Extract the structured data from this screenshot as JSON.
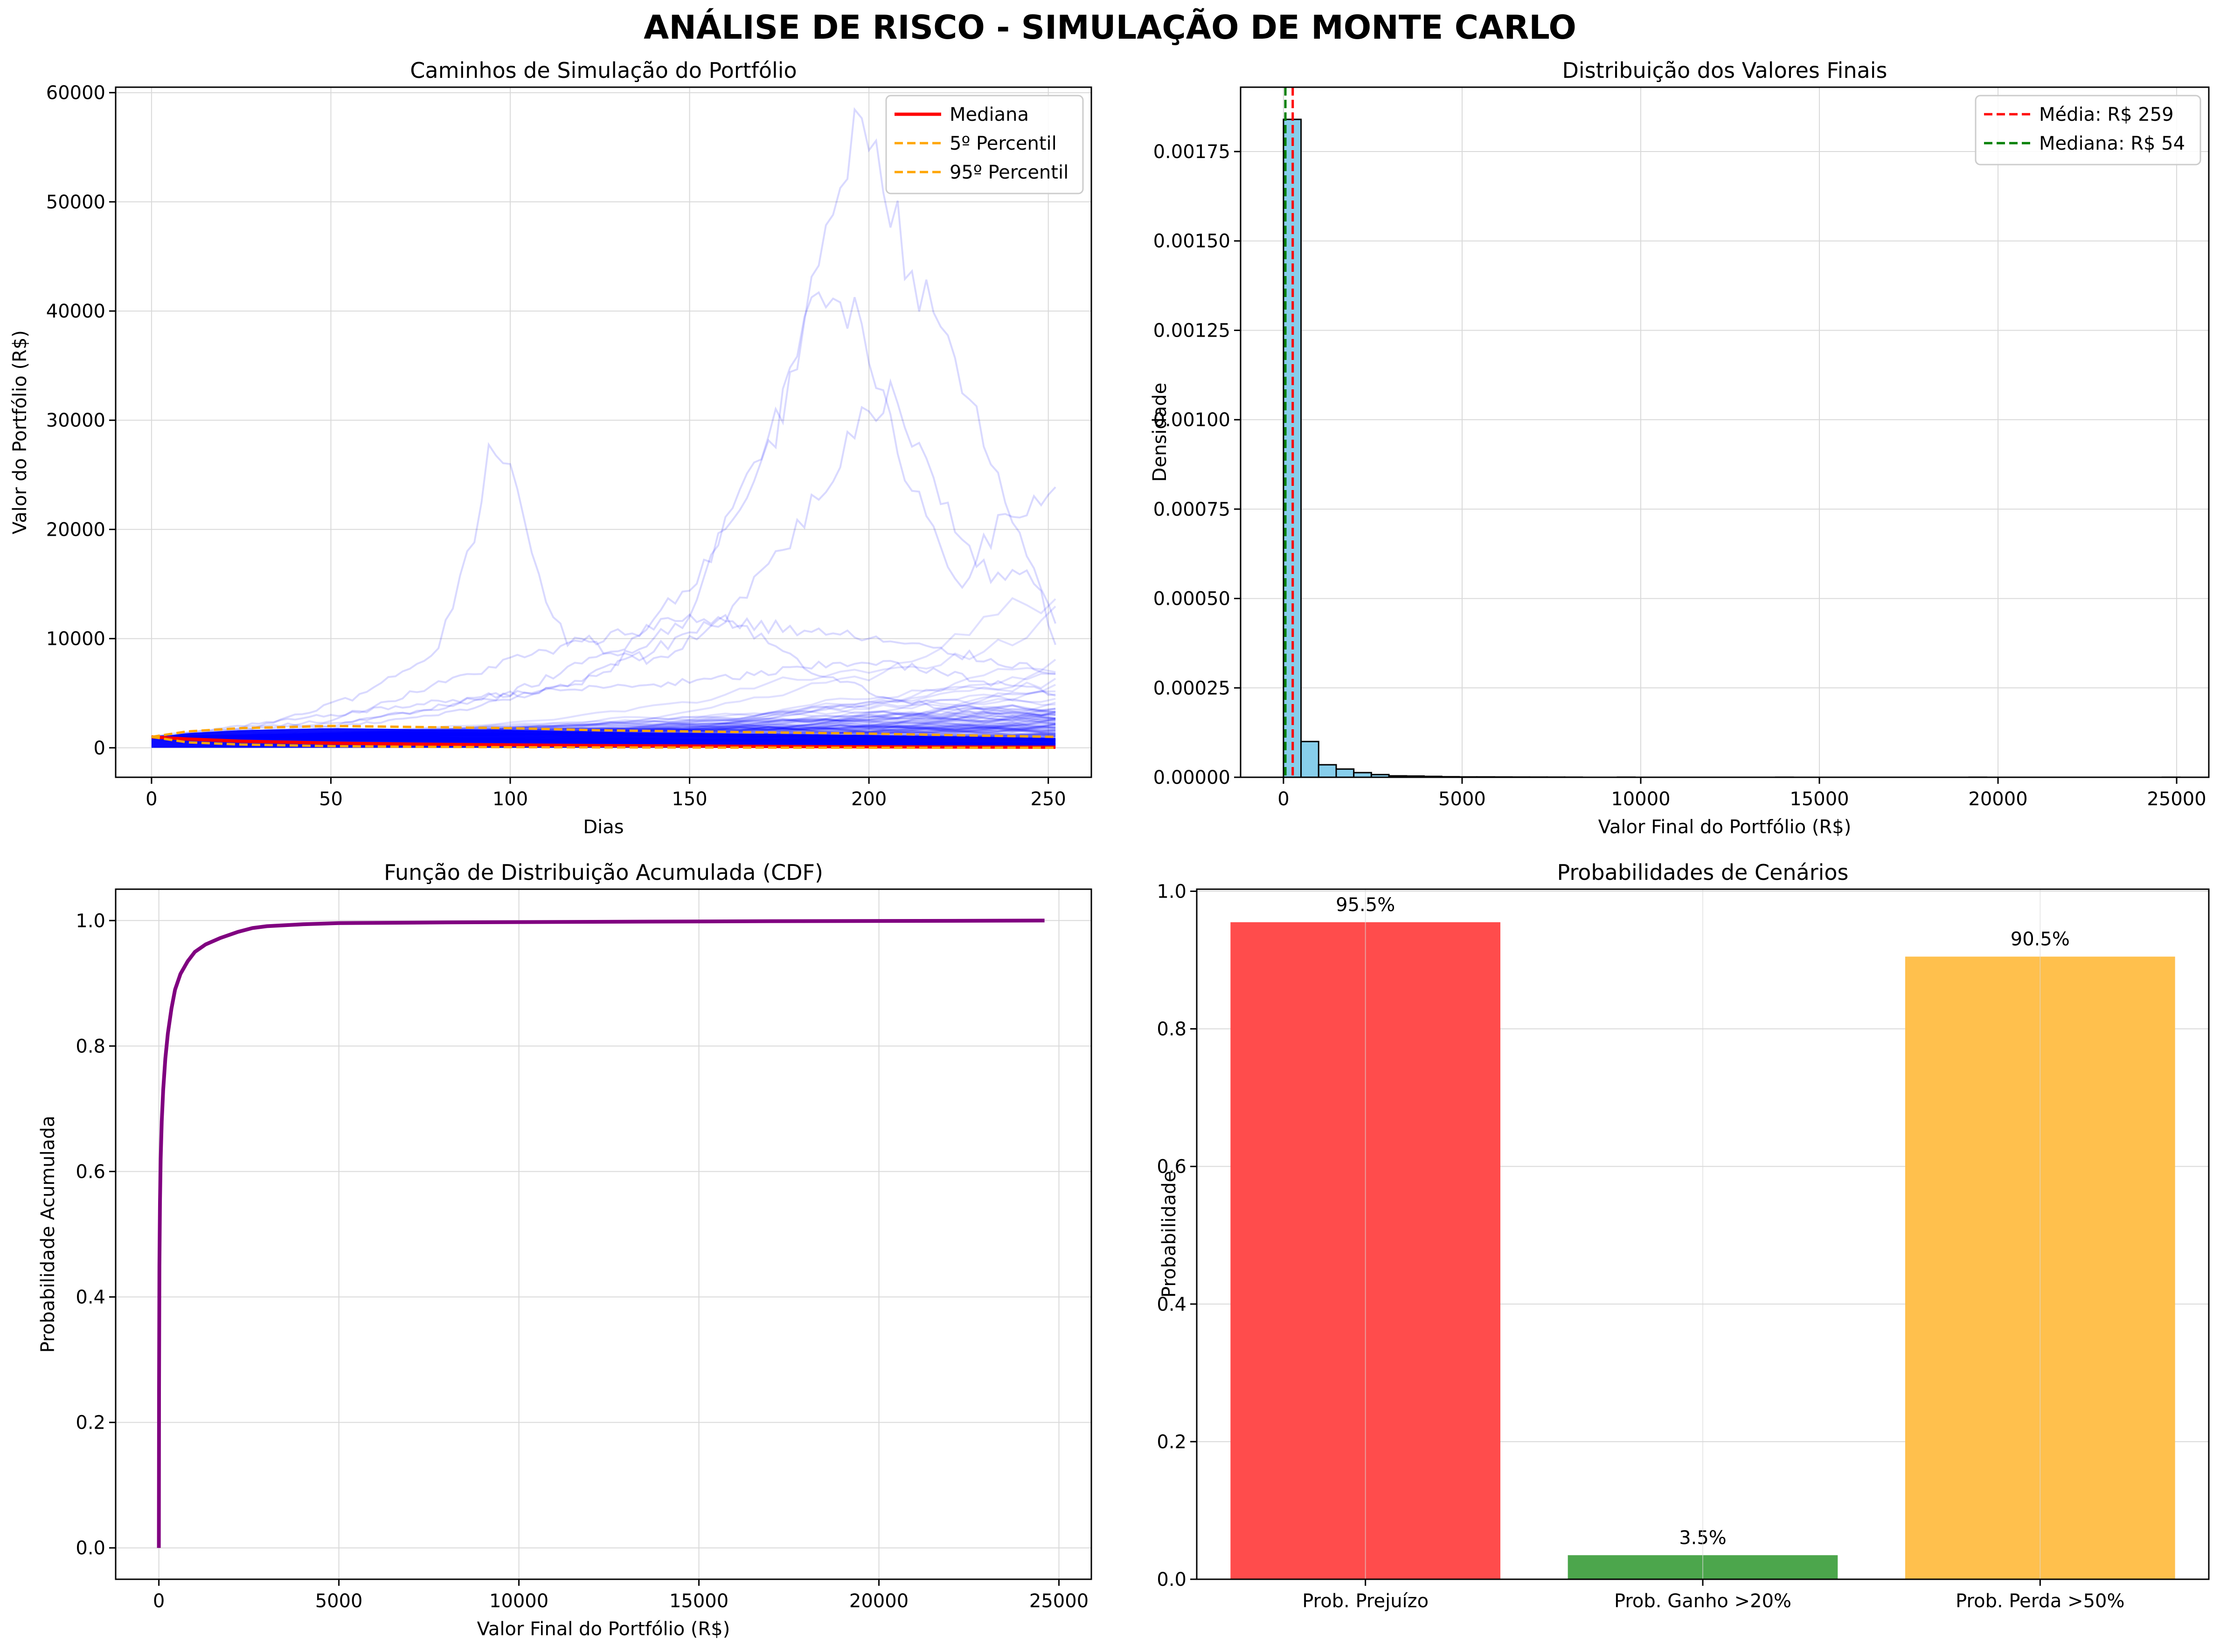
{
  "figure_title": "ANÁLISE DE RISCO - SIMULAÇÃO DE MONTE CARLO",
  "chart_data": [
    {
      "type": "line",
      "title": "Caminhos de Simulação do Portfólio",
      "xlabel": "Dias",
      "ylabel": "Valor do Portfólio (R$)",
      "xlim": [
        -10,
        262
      ],
      "ylim": [
        -2700,
        60500
      ],
      "xticks": [
        0,
        50,
        100,
        150,
        200,
        250
      ],
      "yticks": [
        0,
        10000,
        20000,
        30000,
        40000,
        50000,
        60000
      ],
      "grid": true,
      "legend_position": "upper right",
      "series": [
        {
          "name": "Mediana",
          "color": "#ff0000",
          "style": "solid",
          "x": [
            0,
            10,
            25,
            50,
            75,
            100,
            125,
            150,
            175,
            200,
            225,
            252
          ],
          "y": [
            1000,
            800,
            600,
            430,
            330,
            260,
            200,
            160,
            120,
            90,
            70,
            54
          ]
        },
        {
          "name": "5º Percentil",
          "color": "#ffa500",
          "style": "dashed",
          "x": [
            0,
            10,
            25,
            50,
            75,
            100,
            125,
            150,
            175,
            200,
            225,
            252
          ],
          "y": [
            1000,
            500,
            300,
            150,
            90,
            55,
            35,
            22,
            14,
            9,
            6,
            4
          ]
        },
        {
          "name": "95º Percentil",
          "color": "#ffa500",
          "style": "dashed",
          "x": [
            0,
            10,
            25,
            50,
            75,
            100,
            125,
            150,
            175,
            200,
            225,
            252
          ],
          "y": [
            1000,
            1500,
            1800,
            2000,
            1900,
            1800,
            1600,
            1500,
            1400,
            1300,
            1150,
            1000
          ]
        }
      ],
      "simulation_paths": {
        "name": "simulated paths",
        "color": "#0000ff",
        "opacity": 0.12
      },
      "notable_paths": [
        {
          "x": [
            0,
            30,
            60,
            80,
            90,
            95,
            100,
            105,
            115,
            140,
            160,
            175,
            185,
            195,
            200,
            205,
            215,
            225,
            240,
            252
          ],
          "y": [
            1000,
            2000,
            5000,
            9000,
            20000,
            29000,
            26000,
            18000,
            10000,
            8000,
            12000,
            9000,
            7000,
            6000,
            5000,
            4500,
            4000,
            3500,
            3000,
            2800
          ]
        },
        {
          "x": [
            0,
            40,
            80,
            120,
            150,
            165,
            175,
            185,
            190,
            195,
            200,
            205,
            210,
            220,
            230,
            240,
            252
          ],
          "y": [
            1000,
            1500,
            3000,
            6000,
            12000,
            25000,
            30000,
            42000,
            48000,
            56000,
            57500,
            52000,
            45000,
            38000,
            30000,
            20000,
            12000
          ]
        },
        {
          "x": [
            0,
            50,
            100,
            130,
            150,
            165,
            175,
            185,
            195,
            205,
            215,
            225,
            235,
            245,
            252
          ],
          "y": [
            1000,
            2000,
            5000,
            9000,
            15000,
            22000,
            30000,
            44000,
            40000,
            30000,
            22000,
            15000,
            20000,
            22000,
            24500
          ]
        },
        {
          "x": [
            0,
            60,
            120,
            160,
            180,
            195,
            205,
            215,
            225,
            235,
            245,
            252
          ],
          "y": [
            1000,
            2500,
            6000,
            12000,
            20000,
            28000,
            33000,
            27000,
            20000,
            15000,
            17000,
            9500
          ]
        },
        {
          "x": [
            0,
            50,
            100,
            150,
            200,
            252
          ],
          "y": [
            1000,
            2500,
            8000,
            12000,
            10000,
            7000
          ]
        },
        {
          "x": [
            0,
            50,
            100,
            150,
            200,
            252
          ],
          "y": [
            1000,
            3000,
            5000,
            6000,
            8000,
            5000
          ]
        }
      ]
    },
    {
      "type": "bar",
      "title": "Distribuição dos Valores Finais",
      "xlabel": "Valor Final do Portfólio (R$)",
      "ylabel": "Densidade",
      "xlim": [
        -1200,
        25900
      ],
      "ylim": [
        0,
        0.00193
      ],
      "xticks": [
        0,
        5000,
        10000,
        15000,
        20000,
        25000
      ],
      "yticks": [
        0.0,
        0.00025,
        0.0005,
        0.00075,
        0.001,
        0.00125,
        0.0015,
        0.00175
      ],
      "ytick_labels": [
        "0.00000",
        "0.00025",
        "0.00050",
        "0.00075",
        "0.00100",
        "0.00125",
        "0.00150",
        "0.00175"
      ],
      "grid": true,
      "legend_position": "upper right",
      "bin_width": 492,
      "bin_start": 0,
      "densities": [
        0.00184,
        0.0001,
        3.5e-05,
        2.3e-05,
        1.3e-05,
        7.5e-06,
        4e-06,
        3.5e-06,
        2.5e-06,
        1.5e-06,
        1e-06,
        1e-06,
        8e-07,
        6e-07,
        5e-07,
        4e-07,
        3e-07,
        0,
        0,
        3e-07,
        0,
        0,
        0,
        0,
        0,
        0,
        0,
        0,
        2e-07,
        0,
        0,
        0,
        0,
        0,
        0,
        0,
        0,
        0,
        0,
        2e-07,
        0,
        0,
        0,
        0,
        0,
        0,
        0,
        0,
        0,
        0,
        2e-07
      ],
      "bar_color": "#87ceeb",
      "vlines": [
        {
          "name": "Média: R$ 259",
          "value": 259,
          "color": "#ff0000"
        },
        {
          "name": "Mediana: R$ 54",
          "value": 54,
          "color": "#008000"
        }
      ]
    },
    {
      "type": "line",
      "title": "Função de Distribuição Acumulada (CDF)",
      "xlabel": "Valor Final do Portfólio (R$)",
      "ylabel": "Probabilidade Acumulada",
      "xlim": [
        -1200,
        25900
      ],
      "ylim": [
        -0.05,
        1.05
      ],
      "xticks": [
        0,
        5000,
        10000,
        15000,
        20000,
        25000
      ],
      "yticks": [
        0.0,
        0.2,
        0.4,
        0.6,
        0.8,
        1.0
      ],
      "ytick_labels": [
        "0.0",
        "0.2",
        "0.4",
        "0.6",
        "0.8",
        "1.0"
      ],
      "grid": true,
      "series": [
        {
          "color": "#800080",
          "x": [
            0,
            5,
            15,
            30,
            50,
            80,
            120,
            180,
            250,
            350,
            450,
            600,
            800,
            1000,
            1300,
            1700,
            2200,
            2600,
            3000,
            4000,
            5000,
            8000,
            12000,
            17000,
            22000,
            24600
          ],
          "y": [
            0,
            0.25,
            0.45,
            0.55,
            0.62,
            0.68,
            0.73,
            0.78,
            0.82,
            0.86,
            0.89,
            0.915,
            0.935,
            0.95,
            0.962,
            0.972,
            0.982,
            0.988,
            0.991,
            0.994,
            0.996,
            0.997,
            0.998,
            0.999,
            0.9995,
            1.0
          ]
        }
      ]
    },
    {
      "type": "bar",
      "title": "Probabilidades de Cenários",
      "xlabel": "",
      "ylabel": "Probabilidade",
      "ylim": [
        0,
        1.003
      ],
      "yticks": [
        0.0,
        0.2,
        0.4,
        0.6,
        0.8,
        1.0
      ],
      "ytick_labels": [
        "0.0",
        "0.2",
        "0.4",
        "0.6",
        "0.8",
        "1.0"
      ],
      "grid": true,
      "categories": [
        "Prob. Prejuízo",
        "Prob. Ganho >20%",
        "Prob. Perda >50%"
      ],
      "values": [
        0.955,
        0.035,
        0.905
      ],
      "labels": [
        "95.5%",
        "3.5%",
        "90.5%"
      ],
      "colors": [
        "#ff4c4c",
        "#4ca64c",
        "#ffc04d"
      ]
    }
  ]
}
